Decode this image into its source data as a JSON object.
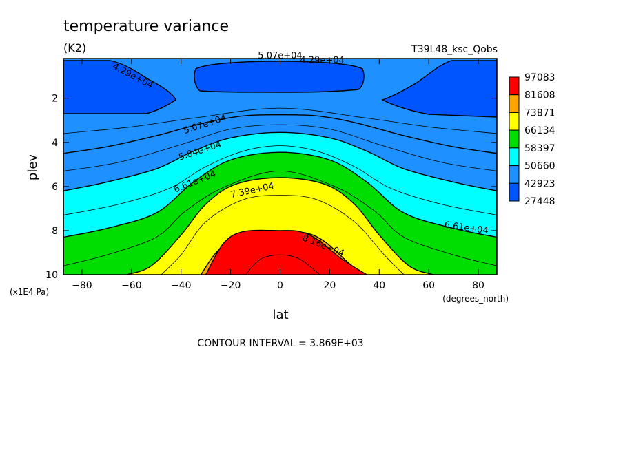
{
  "chart_data": {
    "type": "contour",
    "title": "temperature variance",
    "units": "(K2)",
    "run_id": "T39L48_ksc_Qobs",
    "xlabel": "lat",
    "xlabel_units": "(degrees_north)",
    "ylabel": "plev",
    "ylabel_units": "(x1E4 Pa)",
    "xlim": [
      -87.5,
      87.5
    ],
    "ylim": [
      10,
      0.2
    ],
    "x_ticks": [
      -80,
      -60,
      -40,
      -20,
      0,
      20,
      40,
      60,
      80
    ],
    "x_tick_labels": [
      "−80",
      "−60",
      "−40",
      "−20",
      "0",
      "20",
      "40",
      "60",
      "80"
    ],
    "y_ticks": [
      2,
      4,
      6,
      8,
      10
    ],
    "y_tick_labels": [
      "2",
      "4",
      "6",
      "8",
      "10"
    ],
    "y_inverted": true,
    "contour_interval_text": "CONTOUR INTERVAL = 3.869E+03",
    "legend": {
      "placement": "right",
      "levels": [
        "97083",
        "81608",
        "73871",
        "66134",
        "58397",
        "50660",
        "42923",
        "27448"
      ],
      "colors": [
        "#ff0000",
        "#ffa500",
        "#ffff00",
        "#00dd00",
        "#00ffff",
        "#1e90ff",
        "#0055ff"
      ]
    },
    "contour_labels": [
      {
        "text": "4.29e+04",
        "x": -60,
        "y": 1.1
      },
      {
        "text": "5.07e+04",
        "x": 0,
        "y": 0.2
      },
      {
        "text": "4.29e+04",
        "x": 17,
        "y": 0.4
      },
      {
        "text": "5.07e+04",
        "x": -30,
        "y": 3.3
      },
      {
        "text": "5.84e+04",
        "x": -32,
        "y": 4.5
      },
      {
        "text": "6.61e+04",
        "x": -34,
        "y": 5.9
      },
      {
        "text": "7.39e+04",
        "x": -11,
        "y": 6.3
      },
      {
        "text": "8.16e+04",
        "x": 17,
        "y": 8.8
      },
      {
        "text": "6.61e+04",
        "x": 75,
        "y": 8.0
      }
    ],
    "bands": [
      {
        "name": "27448-42923",
        "color": "#0055ff",
        "boundary": [
          [
            -87.5,
            2.7
          ],
          [
            -75,
            2.6
          ],
          [
            -62,
            2.4
          ],
          [
            -55,
            2.1
          ],
          [
            -50,
            1.9
          ],
          [
            -45,
            1.6
          ],
          [
            -52,
            1.2
          ],
          [
            -62,
            0.7
          ],
          [
            -70,
            0.4
          ],
          [
            -87.5,
            0.2
          ]
        ]
      },
      {
        "name": "42923-50660",
        "color": "#1e90ff",
        "boundary": [
          [
            -87.5,
            4.5
          ],
          [
            -70,
            4.2
          ],
          [
            -50,
            3.7
          ],
          [
            -30,
            3.1
          ],
          [
            -15,
            2.8
          ],
          [
            0,
            2.75
          ],
          [
            15,
            2.8
          ],
          [
            30,
            3.1
          ],
          [
            50,
            3.7
          ],
          [
            70,
            4.2
          ],
          [
            87.5,
            4.5
          ]
        ]
      },
      {
        "name": "50660-58397",
        "color": "#00ffff",
        "boundary": [
          [
            -87.5,
            6.2
          ],
          [
            -70,
            5.8
          ],
          [
            -50,
            5.2
          ],
          [
            -35,
            4.4
          ],
          [
            -20,
            3.8
          ],
          [
            0,
            3.55
          ],
          [
            20,
            3.8
          ],
          [
            35,
            4.4
          ],
          [
            50,
            5.2
          ],
          [
            70,
            5.8
          ],
          [
            87.5,
            6.2
          ]
        ]
      },
      {
        "name": "58397-66134",
        "color": "#00dd00",
        "boundary": [
          [
            -87.5,
            8.3
          ],
          [
            -70,
            7.9
          ],
          [
            -50,
            7.2
          ],
          [
            -35,
            5.8
          ],
          [
            -20,
            4.8
          ],
          [
            0,
            4.45
          ],
          [
            20,
            4.8
          ],
          [
            35,
            5.8
          ],
          [
            50,
            7.2
          ],
          [
            70,
            7.9
          ],
          [
            87.5,
            8.3
          ]
        ]
      },
      {
        "name": "66134-73871",
        "color": "#ffff00",
        "boundary": [
          [
            -62,
            10
          ],
          [
            -52,
            9.6
          ],
          [
            -40,
            8.2
          ],
          [
            -30,
            6.8
          ],
          [
            -18,
            5.9
          ],
          [
            0,
            5.6
          ],
          [
            18,
            5.9
          ],
          [
            30,
            6.8
          ],
          [
            40,
            8.2
          ],
          [
            52,
            9.6
          ],
          [
            62,
            10
          ]
        ]
      },
      {
        "name": "73871-81608",
        "color": "#ffa500",
        "boundary": [
          [
            -32,
            10
          ],
          [
            -25,
            8.9
          ],
          [
            -15,
            8.2
          ],
          [
            0,
            8.1
          ],
          [
            10,
            8.1
          ],
          [
            18,
            8.5
          ],
          [
            28,
            9.5
          ],
          [
            34,
            10
          ]
        ]
      },
      {
        "name": "81608-97083",
        "color": "#ff0000",
        "boundary": []
      }
    ],
    "polar_blobs": [
      {
        "name": "south-polar-minimum",
        "color": "#0055ff"
      },
      {
        "name": "north-polar-minimum",
        "color": "#0055ff"
      },
      {
        "name": "tropical-upper-minimum",
        "color": "#0055ff"
      }
    ]
  }
}
